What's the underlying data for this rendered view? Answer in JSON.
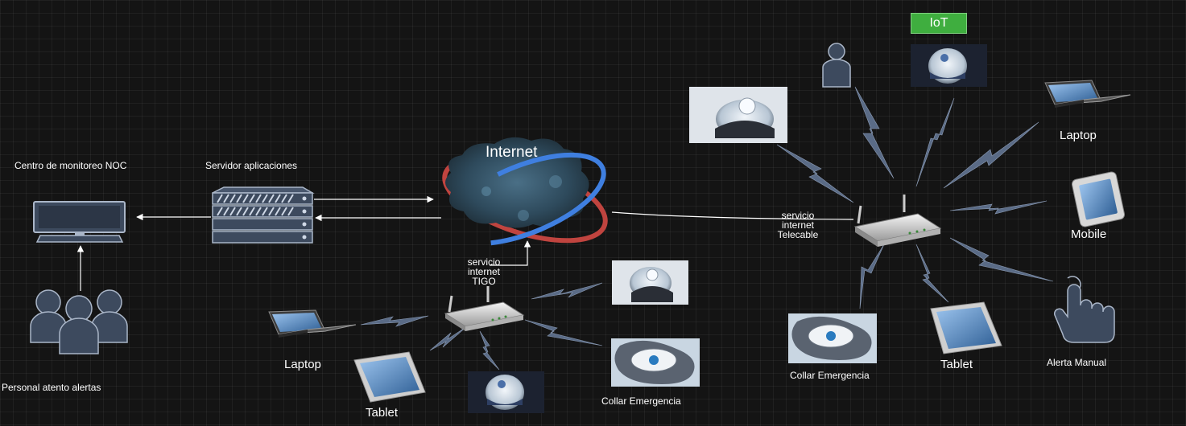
{
  "labels": {
    "noc": "Centro de monitoreo NOC",
    "server": "Servidor aplicaciones",
    "personal": "Personal atento alertas",
    "internet": "Internet",
    "tigo_1": "servicio",
    "tigo_2": "internet",
    "tigo_3": "TIGO",
    "telecable_1": "servicio",
    "telecable_2": "internet",
    "telecable_3": "Telecable",
    "iot": "IoT",
    "laptop_left": "Laptop",
    "tablet_left": "Tablet",
    "collar_left": "Collar Emergencia",
    "laptop_right": "Laptop",
    "mobile": "Mobile",
    "alerta": "Alerta Manual",
    "tablet_right": "Tablet",
    "collar_right": "Collar Emergencia"
  },
  "colors": {
    "background": "#141414",
    "icon": "#3d4a5e",
    "icon_stroke": "#aab6c8",
    "bolt": "#5a6b86",
    "iot_badge": "#3fae3f"
  },
  "icons": [
    "monitor-icon",
    "server-rack-icon",
    "people-group-icon",
    "internet-cloud-icon",
    "router-icon",
    "laptop-icon",
    "tablet-icon",
    "mobile-icon",
    "person-icon",
    "hand-pointer-icon",
    "camera-device-icon",
    "collar-device-icon",
    "lightning-link-icon"
  ]
}
